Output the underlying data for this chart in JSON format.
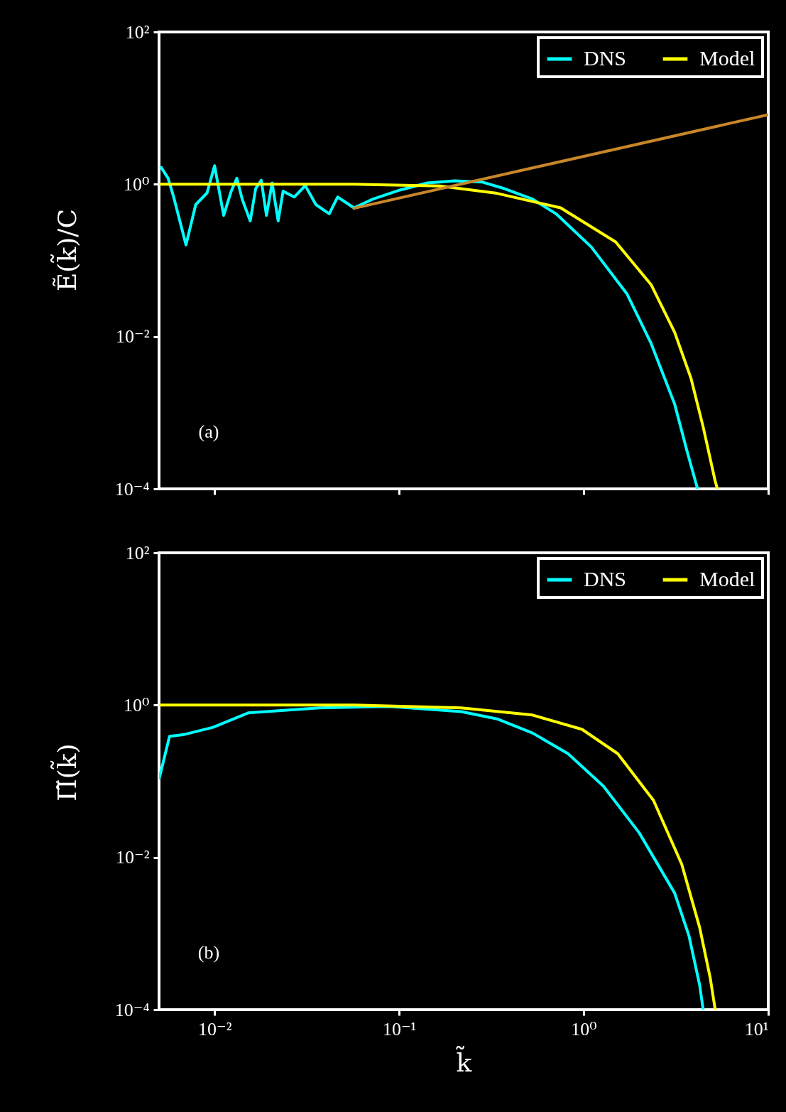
{
  "chart_data": [
    {
      "type": "line",
      "ylabel": "Ẽ(k̃)/C",
      "annotations": [
        "(a)"
      ],
      "log": "xy",
      "legend": "top right",
      "tick_labels": "y",
      "xlim": [
        0.005,
        10
      ],
      "ylim": [
        0.0001,
        100
      ],
      "xticks": [
        {
          "value": 0.01,
          "label": null
        },
        {
          "value": 0.1,
          "label": null
        },
        {
          "value": 1,
          "label": null
        },
        {
          "value": 10,
          "label": null
        }
      ],
      "yticks": [
        {
          "value": 0.0001,
          "label": "10⁻⁴"
        },
        {
          "value": 0.01,
          "label": "10⁻²"
        },
        {
          "value": 1,
          "label": "10⁰"
        },
        {
          "value": 100,
          "label": "10²"
        }
      ],
      "series": [
        {
          "name": "DNS",
          "color": "#00ffff",
          "x": [
            0.0051,
            0.0056,
            0.006,
            0.007,
            0.0079,
            0.0091,
            0.01,
            0.0112,
            0.0123,
            0.0132,
            0.0141,
            0.0156,
            0.0167,
            0.0179,
            0.0191,
            0.0205,
            0.0221,
            0.0235,
            0.027,
            0.031,
            0.0354,
            0.0418,
            0.0464,
            0.0569,
            0.0722,
            0.101,
            0.142,
            0.2,
            0.281,
            0.37,
            0.528,
            0.708,
            1.1,
            1.72,
            2.32,
            3.11,
            3.62,
            4.14
          ],
          "values": [
            1.71,
            1.2,
            0.68,
            0.16,
            0.54,
            0.77,
            1.75,
            0.39,
            0.81,
            1.2,
            0.64,
            0.33,
            0.88,
            1.13,
            0.39,
            1.04,
            0.33,
            0.81,
            0.68,
            0.96,
            0.54,
            0.41,
            0.68,
            0.49,
            0.64,
            0.84,
            1.04,
            1.11,
            1.07,
            0.88,
            0.64,
            0.41,
            0.15,
            0.036,
            0.0081,
            0.0013,
            0.00032,
            0.0001
          ]
        },
        {
          "name": "Model",
          "color": "#ffff00",
          "x": [
            0.005,
            0.057,
            0.166,
            0.339,
            0.75,
            1.49,
            2.32,
            3.11,
            3.82,
            4.44,
            5.16,
            5.3
          ],
          "values": [
            1,
            1,
            0.95,
            0.76,
            0.49,
            0.175,
            0.048,
            0.0114,
            0.0028,
            0.00065,
            0.000126,
            0.0001
          ]
        },
        {
          "color": "#c8862a",
          "x": [
            0.056,
            10
          ],
          "values": [
            0.48,
            8.2
          ]
        }
      ]
    },
    {
      "type": "line",
      "ylabel": "Π̃(k̃)",
      "xlabel": "k̃",
      "annotations": [
        "(b)"
      ],
      "log": "xy",
      "legend": "top right",
      "xlim": [
        0.005,
        10
      ],
      "ylim": [
        0.0001,
        100
      ],
      "xticks": [
        {
          "value": 0.01,
          "label": "10⁻²"
        },
        {
          "value": 0.1,
          "label": "10⁻¹"
        },
        {
          "value": 1,
          "label": "10⁰"
        },
        {
          "value": 10,
          "label": "10¹"
        }
      ],
      "yticks": [
        {
          "value": 0.0001,
          "label": "10⁻⁴"
        },
        {
          "value": 0.01,
          "label": "10⁻²"
        },
        {
          "value": 1,
          "label": "10⁰"
        },
        {
          "value": 100,
          "label": "10²"
        }
      ],
      "series": [
        {
          "name": "DNS",
          "color": "#00ffff",
          "x": [
            0.005,
            0.0057,
            0.0068,
            0.0098,
            0.0152,
            0.037,
            0.089,
            0.217,
            0.339,
            0.528,
            0.823,
            1.28,
            2.0,
            3.11,
            3.72,
            4.25,
            4.44
          ],
          "values": [
            0.106,
            0.39,
            0.41,
            0.51,
            0.79,
            0.92,
            0.96,
            0.82,
            0.66,
            0.43,
            0.23,
            0.086,
            0.021,
            0.0034,
            0.00093,
            0.00021,
            0.0001
          ]
        },
        {
          "name": "Model",
          "color": "#ffff00",
          "x": [
            0.005,
            0.057,
            0.217,
            0.528,
            0.98,
            1.53,
            2.39,
            3.4,
            4.25,
            4.85,
            5.16
          ],
          "values": [
            1,
            1,
            0.92,
            0.74,
            0.48,
            0.23,
            0.056,
            0.0081,
            0.0012,
            0.00026,
            0.0001
          ]
        }
      ]
    }
  ]
}
